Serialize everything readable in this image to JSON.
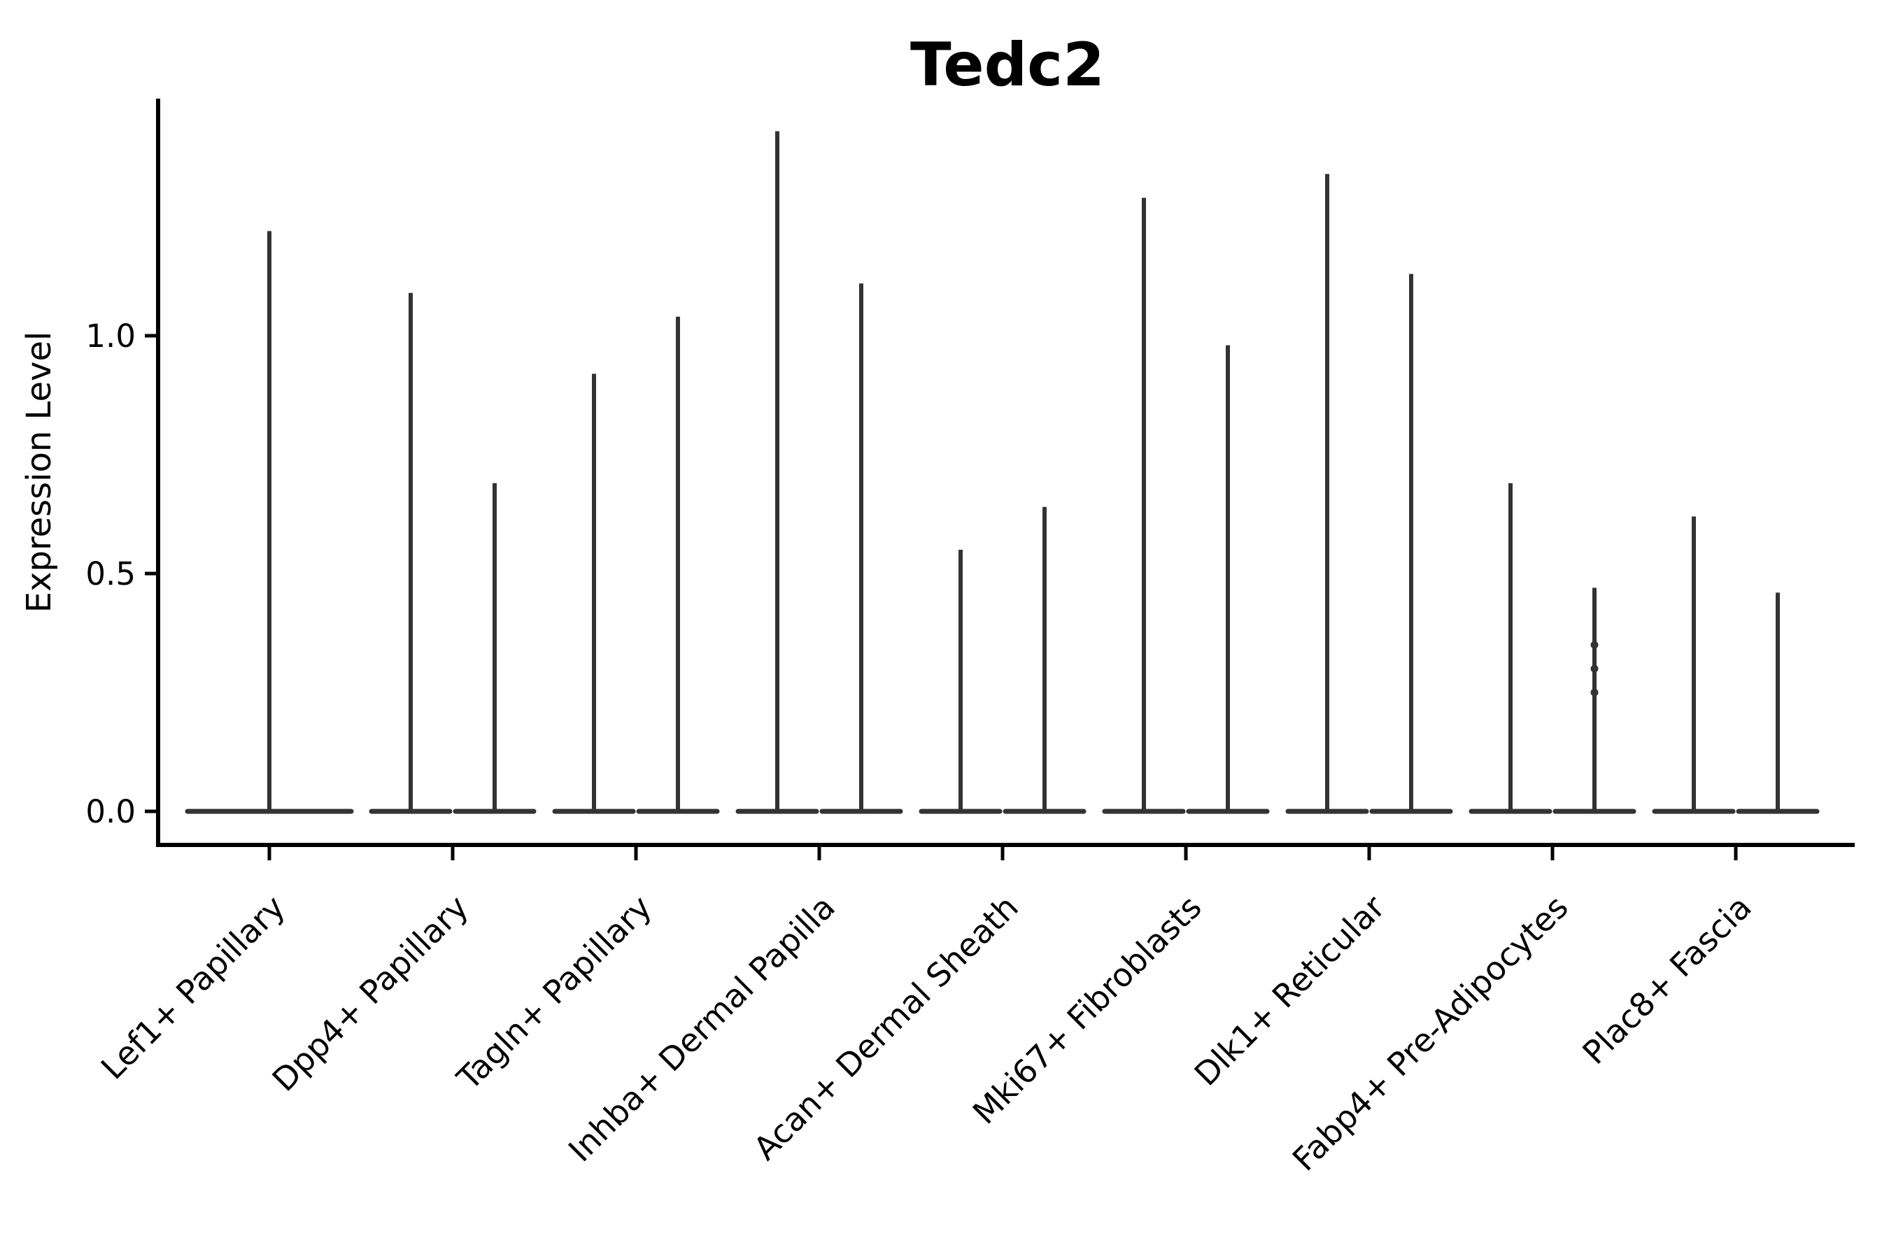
{
  "chart_data": {
    "type": "violin",
    "title": "Tedc2",
    "xlabel": "",
    "ylabel": "Expression Level",
    "ylim": [
      -0.07,
      1.5
    ],
    "yticks": [
      0.0,
      0.5,
      1.0
    ],
    "ytick_labels": [
      "0.0",
      "0.5",
      "1.0"
    ],
    "grid": false,
    "legend_position": "none",
    "style": "very thin violin spikes rising from a flat baseline at 0; two split violins per category except the first category which has one centered full-width violin",
    "categories": [
      "Lef1+ Papillary",
      "Dpp4+ Papillary",
      "Tagln+ Papillary",
      "Inhba+ Dermal Papilla",
      "Acan+ Dermal Sheath",
      "Mki67+ Fibroblasts",
      "Dlk1+ Reticular",
      "Fabp4+ Pre-Adipocytes",
      "Plac8+ Fascia"
    ],
    "groups": [
      {
        "label": "Lef1+ Papillary",
        "violins": [
          {
            "min": 0,
            "max": 1.22
          }
        ]
      },
      {
        "label": "Dpp4+ Papillary",
        "violins": [
          {
            "min": 0,
            "max": 1.09
          },
          {
            "min": 0,
            "max": 0.69
          }
        ]
      },
      {
        "label": "Tagln+ Papillary",
        "violins": [
          {
            "min": 0,
            "max": 0.92
          },
          {
            "min": 0,
            "max": 1.04
          }
        ]
      },
      {
        "label": "Inhba+ Dermal Papilla",
        "violins": [
          {
            "min": 0,
            "max": 1.43
          },
          {
            "min": 0,
            "max": 1.11
          }
        ]
      },
      {
        "label": "Acan+ Dermal Sheath",
        "violins": [
          {
            "min": 0,
            "max": 0.55
          },
          {
            "min": 0,
            "max": 0.64
          }
        ]
      },
      {
        "label": "Mki67+ Fibroblasts",
        "violins": [
          {
            "min": 0,
            "max": 1.29
          },
          {
            "min": 0,
            "max": 0.98
          }
        ]
      },
      {
        "label": "Dlk1+ Reticular",
        "violins": [
          {
            "min": 0,
            "max": 1.34
          },
          {
            "min": 0,
            "max": 1.13
          }
        ]
      },
      {
        "label": "Fabp4+ Pre-Adipocytes",
        "violins": [
          {
            "min": 0,
            "max": 0.69
          },
          {
            "min": 0,
            "max": 0.47,
            "points": [
              0.35,
              0.3,
              0.25
            ]
          }
        ]
      },
      {
        "label": "Plac8+ Fascia",
        "violins": [
          {
            "min": 0,
            "max": 0.62
          },
          {
            "min": 0,
            "max": 0.46
          }
        ]
      }
    ],
    "colors": {
      "violin": "#333333",
      "axis": "#000000",
      "text": "#000000",
      "background": "#ffffff"
    }
  }
}
